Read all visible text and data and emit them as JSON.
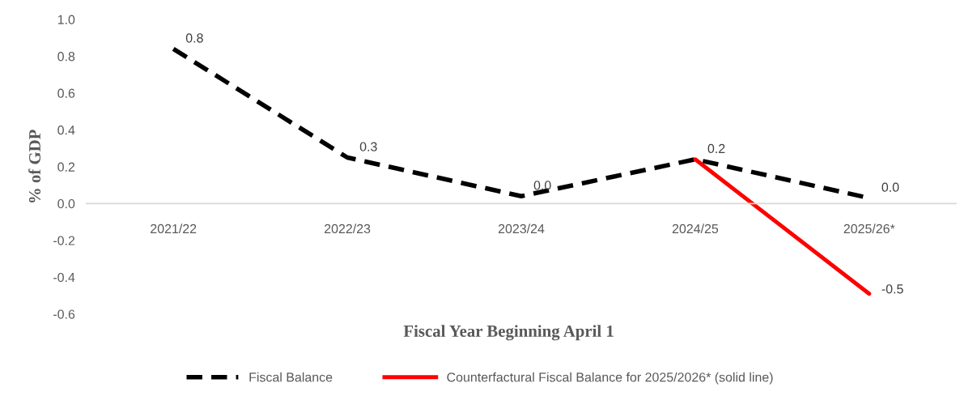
{
  "chart_data": {
    "type": "line",
    "xlabel": "Fiscal Year Beginning April 1",
    "ylabel": "% of GDP",
    "categories": [
      "2021/22",
      "2022/23",
      "2023/24",
      "2024/25",
      "2025/26*"
    ],
    "series": [
      {
        "name": "Fiscal Balance",
        "color": "#000000",
        "line_style": "dashed",
        "values": [
          0.84,
          0.25,
          0.04,
          0.24,
          0.03
        ],
        "value_labels": [
          "0.8",
          "0.3",
          "0.0",
          "0.2",
          "0.0"
        ]
      },
      {
        "name": "Counterfactural Fiscal Balance for 2025/2026* (solid line)",
        "color": "#ff0000",
        "line_style": "solid",
        "values": [
          null,
          null,
          null,
          0.24,
          -0.49
        ],
        "value_labels": [
          null,
          null,
          null,
          null,
          "-0.5"
        ]
      }
    ],
    "ylim": [
      -0.6,
      1.0
    ],
    "yticks": [
      {
        "value": -0.6,
        "label": "-0.6"
      },
      {
        "value": -0.4,
        "label": "-0.4"
      },
      {
        "value": -0.2,
        "label": "-0.2"
      },
      {
        "value": 0,
        "label": "0.0"
      },
      {
        "value": 0.2,
        "label": "0.2"
      },
      {
        "value": 0.4,
        "label": "0.4"
      },
      {
        "value": 0.6,
        "label": "0.6"
      },
      {
        "value": 0.8,
        "label": "0.8"
      },
      {
        "value": 1.0,
        "label": "1.0"
      }
    ],
    "grid": false,
    "legend": "bottom",
    "marker": "none"
  }
}
